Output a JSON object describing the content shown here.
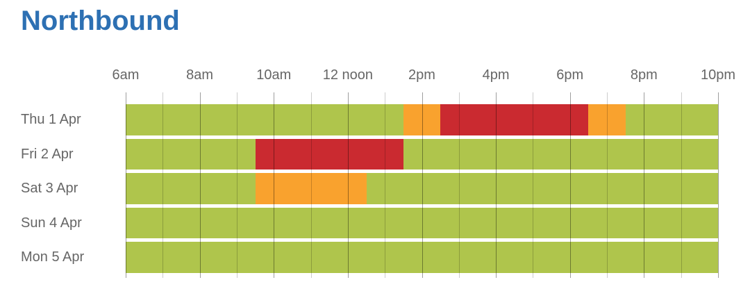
{
  "title": "Northbound",
  "colors": {
    "title": "#2d70b3",
    "label_text": "#666666",
    "green": "#afc54c",
    "amber": "#f9a22e",
    "red": "#ca2a30",
    "grid_major": "rgba(0,0,0,0.38)",
    "grid_minor": "rgba(0,0,0,0.20)"
  },
  "chart_data": {
    "type": "bar",
    "subtype": "horizontal-stacked-timeline",
    "title": "Northbound",
    "legend": "none",
    "grid": "vertical lines every hour, darker on labelled hours",
    "x_axis": {
      "unit": "hour-of-day",
      "start": 6,
      "end": 22,
      "minor_tick_every": 1,
      "label_every": 2,
      "tick_labels": [
        "6am",
        "8am",
        "10am",
        "12 noon",
        "2pm",
        "4pm",
        "6pm",
        "8pm",
        "10pm"
      ]
    },
    "rows": [
      {
        "label": "Thu 1 Apr",
        "segments": [
          {
            "start": 6,
            "end": 13.5,
            "status": "green"
          },
          {
            "start": 13.5,
            "end": 14.5,
            "status": "amber"
          },
          {
            "start": 14.5,
            "end": 18.5,
            "status": "red"
          },
          {
            "start": 18.5,
            "end": 19.5,
            "status": "amber"
          },
          {
            "start": 19.5,
            "end": 22,
            "status": "green"
          }
        ]
      },
      {
        "label": "Fri 2 Apr",
        "segments": [
          {
            "start": 6,
            "end": 9.5,
            "status": "green"
          },
          {
            "start": 9.5,
            "end": 13.5,
            "status": "red"
          },
          {
            "start": 13.5,
            "end": 22,
            "status": "green"
          }
        ]
      },
      {
        "label": "Sat 3 Apr",
        "segments": [
          {
            "start": 6,
            "end": 9.5,
            "status": "green"
          },
          {
            "start": 9.5,
            "end": 12.5,
            "status": "amber"
          },
          {
            "start": 12.5,
            "end": 22,
            "status": "green"
          }
        ]
      },
      {
        "label": "Sun 4 Apr",
        "segments": [
          {
            "start": 6,
            "end": 22,
            "status": "green"
          }
        ]
      },
      {
        "label": "Mon 5 Apr",
        "segments": [
          {
            "start": 6,
            "end": 22,
            "status": "green"
          }
        ]
      }
    ]
  }
}
